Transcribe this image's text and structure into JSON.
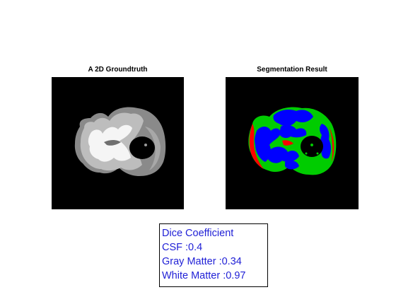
{
  "figure": {
    "left_panel": {
      "title": "A 2D Groundtruth"
    },
    "right_panel": {
      "title": "Segmentation Result"
    }
  },
  "legend_colors": {
    "csf": "#ff0000",
    "gray_matter": "#00cc00",
    "white_matter": "#0000ff",
    "background": "#000000"
  },
  "dice_box": {
    "heading": "Dice Coefficient",
    "csf": "CSF :0.4",
    "gray_matter": "Gray Matter :0.34",
    "white_matter": "White Matter :0.97"
  }
}
